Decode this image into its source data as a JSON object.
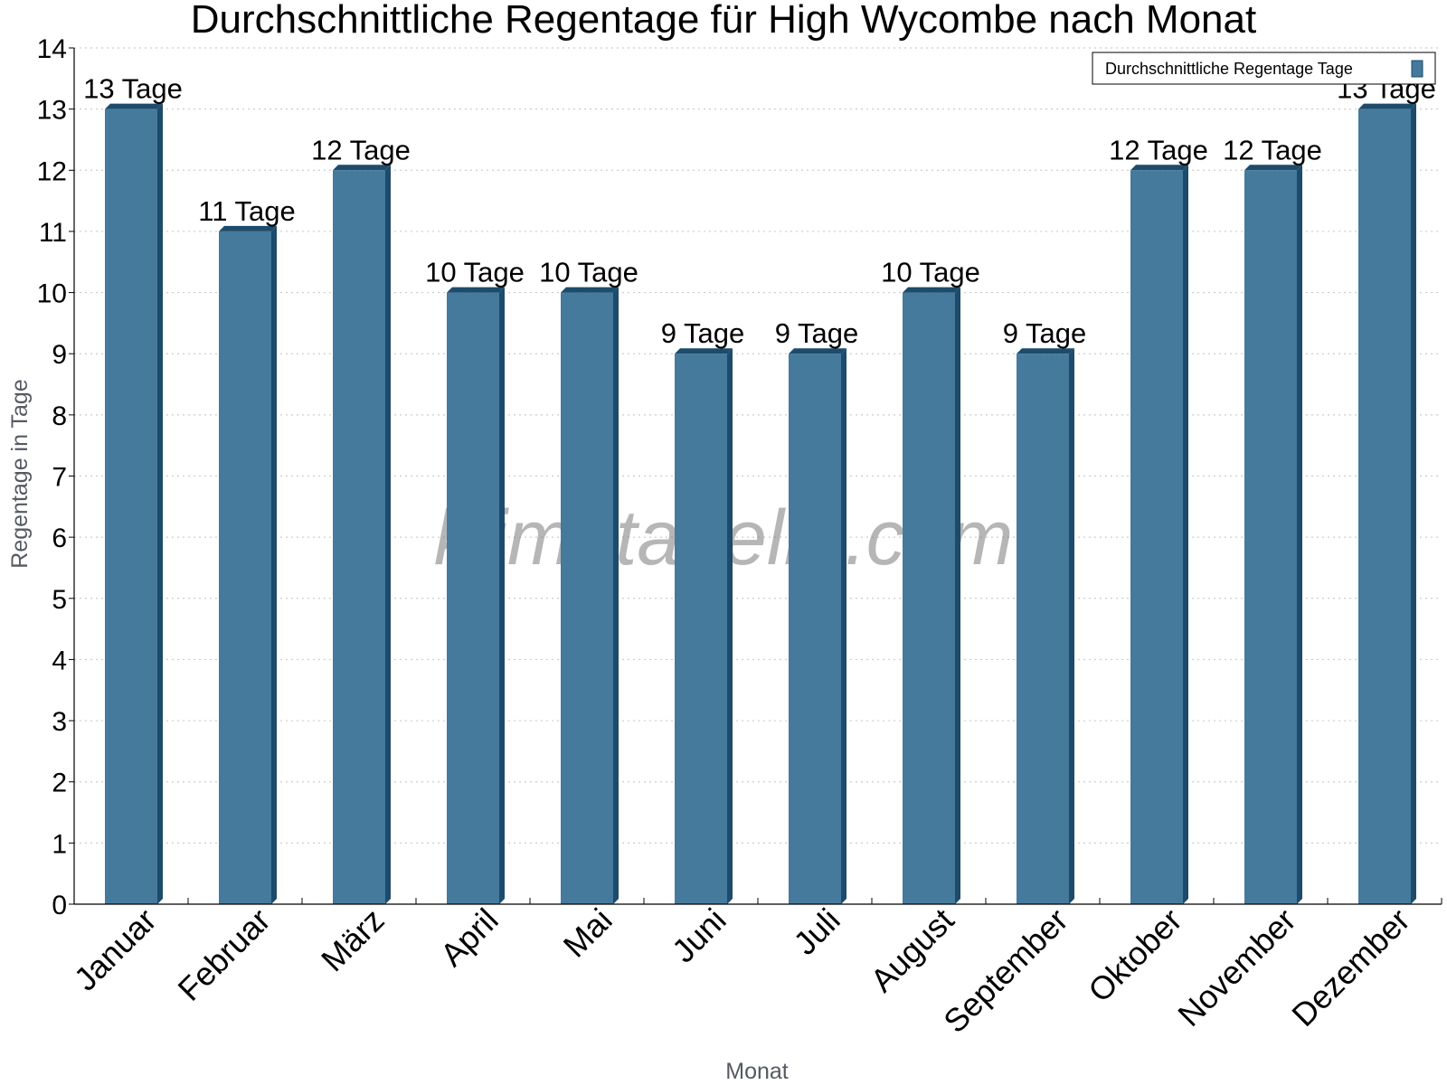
{
  "chart_data": {
    "type": "bar",
    "title": "Durchschnittliche Regentage für High Wycombe nach Monat",
    "xlabel": "Monat",
    "ylabel": "Regentage in Tage",
    "ylim": [
      0,
      14
    ],
    "yticks": [
      "0",
      "1",
      "2",
      "3",
      "4",
      "5",
      "6",
      "7",
      "8",
      "9",
      "10",
      "11",
      "12",
      "13",
      "14"
    ],
    "grid": true,
    "legend_position": "top-right",
    "categories": [
      "Januar",
      "Februar",
      "März",
      "April",
      "Mai",
      "Juni",
      "Juli",
      "August",
      "September",
      "Oktober",
      "November",
      "Dezember"
    ],
    "series": [
      {
        "name": "Durchschnittliche Regentage Tage",
        "color": "#457a9c",
        "values": [
          13,
          11,
          12,
          10,
          10,
          9,
          9,
          10,
          9,
          12,
          12,
          13
        ],
        "labels": [
          "13 Tage",
          "11 Tage",
          "12 Tage",
          "10 Tage",
          "10 Tage",
          "9 Tage",
          "9 Tage",
          "10 Tage",
          "9 Tage",
          "12 Tage",
          "12 Tage",
          "13 Tage"
        ]
      }
    ]
  },
  "watermark": "klimatabelle.com",
  "colors": {
    "bar": "#457a9c",
    "bar_side": "#1d4b6b",
    "grid": "#cccccc",
    "axis": "#000000"
  }
}
